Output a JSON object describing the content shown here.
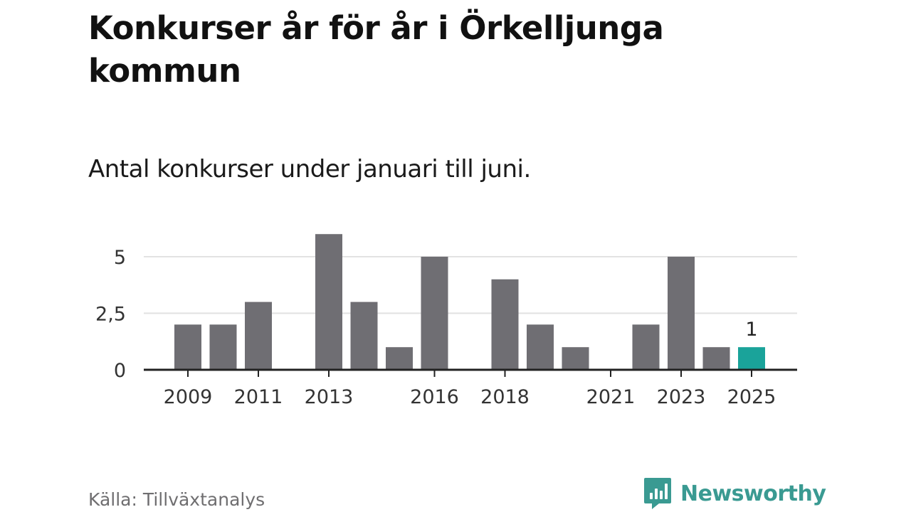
{
  "header": {
    "title": "Konkurser år för år i Örkelljunga kommun",
    "subtitle": "Antal konkurser under januari till juni."
  },
  "footer": {
    "source": "Källa: Tillväxtanalys",
    "brand": "Newsworthy"
  },
  "colors": {
    "bar": "#6f6e73",
    "highlight": "#1aa39a",
    "grid": "#e2e2e2",
    "axis": "#222222",
    "brand": "#3a9a92"
  },
  "chart_data": {
    "type": "bar",
    "categories": [
      "2009",
      "2010",
      "2011",
      "2012",
      "2013",
      "2014",
      "2015",
      "2016",
      "2017",
      "2018",
      "2019",
      "2020",
      "2021",
      "2022",
      "2023",
      "2024",
      "2025"
    ],
    "values": [
      2,
      2,
      3,
      0,
      6,
      3,
      1,
      5,
      0,
      4,
      2,
      1,
      0,
      2,
      5,
      1,
      1
    ],
    "highlight_category": "2025",
    "data_labels": [
      {
        "category": "2025",
        "text": "1"
      }
    ],
    "x_tick_labels": [
      "2009",
      "2011",
      "2013",
      "2016",
      "2018",
      "2021",
      "2023",
      "2025"
    ],
    "y_ticks": [
      0,
      2.5,
      5
    ],
    "y_tick_labels": [
      "0",
      "2,5",
      "5"
    ],
    "ylim": [
      0,
      6
    ],
    "grid": true,
    "xlabel": "",
    "ylabel": ""
  }
}
